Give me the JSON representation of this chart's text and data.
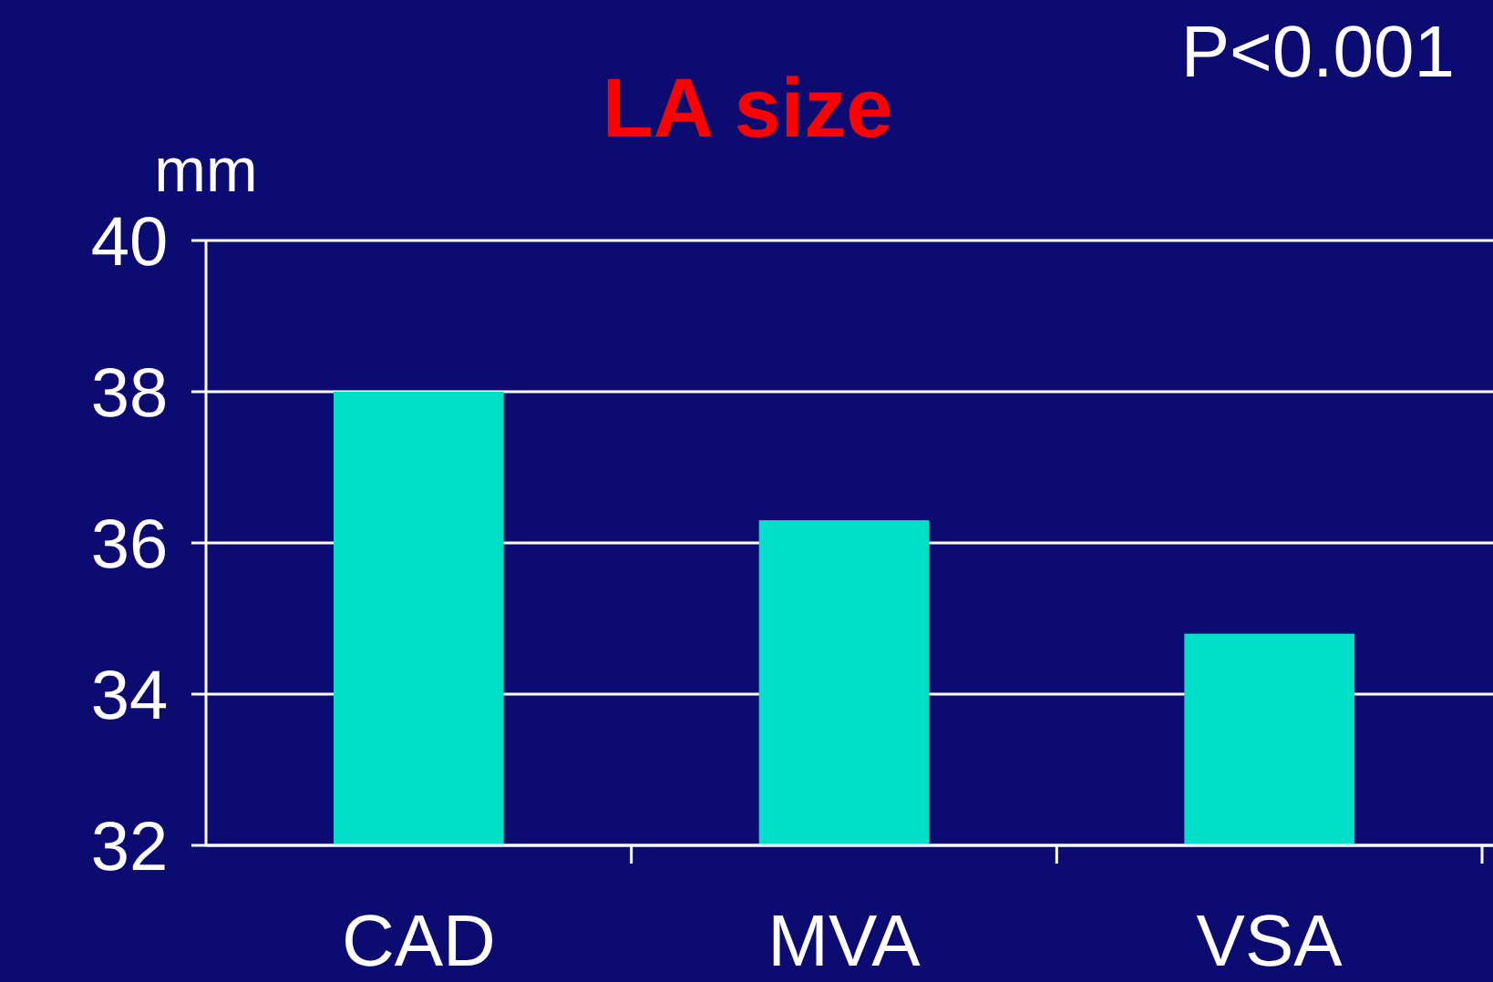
{
  "chart_data": {
    "type": "bar",
    "title": "LA size",
    "ylabel": "mm",
    "annotations": [
      "P<0.001"
    ],
    "categories": [
      "CAD",
      "MVA",
      "VSA"
    ],
    "values": [
      38.0,
      36.3,
      34.8
    ],
    "color": "#00dfc8",
    "ylim": [
      32,
      40
    ],
    "yticks": [
      32,
      34,
      36,
      38,
      40
    ],
    "grid": "y"
  }
}
